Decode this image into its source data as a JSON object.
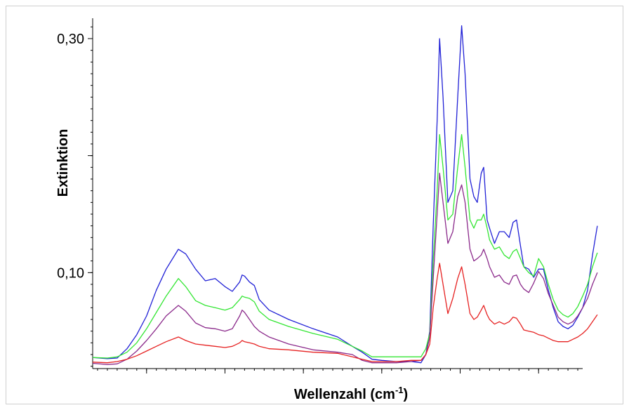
{
  "chart_data": {
    "type": "line",
    "title": "",
    "xlabel": "Wellenzahl (cm",
    "xlabel_sup": "-1",
    "xlabel_suffix": ")",
    "ylabel": "Extinktion",
    "ylim": [
      0.018,
      0.315
    ],
    "xlim": [
      0,
      100
    ],
    "y_tick_labels": [
      {
        "value": 0.3,
        "label": "0,30"
      },
      {
        "value": 0.1,
        "label": "0,10"
      }
    ],
    "y_major_ticks": [
      0.3,
      0.2,
      0.1
    ],
    "x_major_ticks": [
      11,
      27,
      43,
      59,
      75,
      91
    ],
    "grid": false,
    "legend": "none",
    "series": [
      {
        "color": "#2121d6",
        "points": [
          [
            0,
            0.0275
          ],
          [
            3,
            0.0265
          ],
          [
            5,
            0.027
          ],
          [
            7,
            0.035
          ],
          [
            9,
            0.047
          ],
          [
            11,
            0.063
          ],
          [
            13,
            0.085
          ],
          [
            15,
            0.103
          ],
          [
            17.5,
            0.12
          ],
          [
            19,
            0.116
          ],
          [
            21,
            0.103
          ],
          [
            23,
            0.093
          ],
          [
            25,
            0.095
          ],
          [
            27,
            0.088
          ],
          [
            28.5,
            0.084
          ],
          [
            30,
            0.092
          ],
          [
            30.5,
            0.098
          ],
          [
            31,
            0.097
          ],
          [
            32,
            0.092
          ],
          [
            33,
            0.089
          ],
          [
            34,
            0.077
          ],
          [
            36,
            0.068
          ],
          [
            40,
            0.06
          ],
          [
            45,
            0.052
          ],
          [
            50,
            0.045
          ],
          [
            53,
            0.037
          ],
          [
            55,
            0.032
          ],
          [
            57,
            0.026
          ],
          [
            59,
            0.025
          ],
          [
            62,
            0.024
          ],
          [
            65,
            0.024
          ],
          [
            67,
            0.023
          ],
          [
            68,
            0.03
          ],
          [
            68.8,
            0.05
          ],
          [
            69.5,
            0.14
          ],
          [
            70.3,
            0.23
          ],
          [
            70.8,
            0.3
          ],
          [
            71.5,
            0.25
          ],
          [
            72.5,
            0.16
          ],
          [
            73.5,
            0.17
          ],
          [
            74.5,
            0.25
          ],
          [
            75.3,
            0.311
          ],
          [
            76,
            0.27
          ],
          [
            77,
            0.18
          ],
          [
            77.8,
            0.165
          ],
          [
            78.5,
            0.16
          ],
          [
            79.3,
            0.185
          ],
          [
            79.8,
            0.19
          ],
          [
            80.5,
            0.145
          ],
          [
            81,
            0.138
          ],
          [
            82,
            0.125
          ],
          [
            83,
            0.135
          ],
          [
            84,
            0.135
          ],
          [
            85,
            0.13
          ],
          [
            85.8,
            0.143
          ],
          [
            86.5,
            0.145
          ],
          [
            87.3,
            0.123
          ],
          [
            88,
            0.105
          ],
          [
            89,
            0.103
          ],
          [
            90,
            0.096
          ],
          [
            91,
            0.103
          ],
          [
            92,
            0.103
          ],
          [
            93,
            0.085
          ],
          [
            94,
            0.07
          ],
          [
            95,
            0.058
          ],
          [
            96,
            0.054
          ],
          [
            97,
            0.052
          ],
          [
            98,
            0.055
          ],
          [
            99,
            0.062
          ],
          [
            100,
            0.07
          ],
          [
            101,
            0.085
          ],
          [
            102,
            0.115
          ],
          [
            103,
            0.14
          ]
        ]
      },
      {
        "color": "#33e633",
        "points": [
          [
            0,
            0.0275
          ],
          [
            3,
            0.027
          ],
          [
            5,
            0.028
          ],
          [
            7,
            0.032
          ],
          [
            9,
            0.04
          ],
          [
            11,
            0.052
          ],
          [
            13,
            0.066
          ],
          [
            15,
            0.08
          ],
          [
            17.5,
            0.095
          ],
          [
            19,
            0.088
          ],
          [
            21,
            0.076
          ],
          [
            23,
            0.072
          ],
          [
            25,
            0.07
          ],
          [
            27,
            0.068
          ],
          [
            28.5,
            0.07
          ],
          [
            30,
            0.077
          ],
          [
            30.5,
            0.08
          ],
          [
            31,
            0.079
          ],
          [
            32,
            0.078
          ],
          [
            33,
            0.075
          ],
          [
            34,
            0.067
          ],
          [
            36,
            0.06
          ],
          [
            40,
            0.054
          ],
          [
            45,
            0.048
          ],
          [
            50,
            0.043
          ],
          [
            53,
            0.037
          ],
          [
            55,
            0.033
          ],
          [
            57,
            0.028
          ],
          [
            59,
            0.028
          ],
          [
            62,
            0.028
          ],
          [
            65,
            0.028
          ],
          [
            67,
            0.028
          ],
          [
            68,
            0.035
          ],
          [
            68.8,
            0.048
          ],
          [
            69.5,
            0.11
          ],
          [
            70.3,
            0.17
          ],
          [
            70.8,
            0.218
          ],
          [
            71.5,
            0.19
          ],
          [
            72.5,
            0.145
          ],
          [
            73.5,
            0.15
          ],
          [
            74.5,
            0.19
          ],
          [
            75.3,
            0.218
          ],
          [
            76,
            0.19
          ],
          [
            77,
            0.145
          ],
          [
            77.8,
            0.138
          ],
          [
            78.5,
            0.145
          ],
          [
            79.3,
            0.145
          ],
          [
            79.8,
            0.15
          ],
          [
            80.5,
            0.138
          ],
          [
            81,
            0.128
          ],
          [
            82,
            0.12
          ],
          [
            83,
            0.122
          ],
          [
            84,
            0.115
          ],
          [
            85,
            0.112
          ],
          [
            85.8,
            0.118
          ],
          [
            86.5,
            0.12
          ],
          [
            87.3,
            0.112
          ],
          [
            88,
            0.105
          ],
          [
            89,
            0.1
          ],
          [
            90,
            0.097
          ],
          [
            91,
            0.112
          ],
          [
            92,
            0.105
          ],
          [
            93,
            0.09
          ],
          [
            94,
            0.077
          ],
          [
            95,
            0.068
          ],
          [
            96,
            0.064
          ],
          [
            97,
            0.062
          ],
          [
            98,
            0.065
          ],
          [
            99,
            0.071
          ],
          [
            100,
            0.08
          ],
          [
            101,
            0.09
          ],
          [
            102,
            0.105
          ],
          [
            103,
            0.117
          ]
        ]
      },
      {
        "color": "#8b2a8b",
        "points": [
          [
            0,
            0.0225
          ],
          [
            3,
            0.0215
          ],
          [
            5,
            0.022
          ],
          [
            7,
            0.026
          ],
          [
            9,
            0.033
          ],
          [
            11,
            0.042
          ],
          [
            13,
            0.052
          ],
          [
            15,
            0.063
          ],
          [
            17.5,
            0.072
          ],
          [
            19,
            0.067
          ],
          [
            21,
            0.057
          ],
          [
            23,
            0.053
          ],
          [
            25,
            0.052
          ],
          [
            27,
            0.05
          ],
          [
            28.5,
            0.052
          ],
          [
            30,
            0.063
          ],
          [
            30.5,
            0.068
          ],
          [
            31,
            0.066
          ],
          [
            32,
            0.06
          ],
          [
            33,
            0.054
          ],
          [
            34,
            0.05
          ],
          [
            36,
            0.045
          ],
          [
            40,
            0.039
          ],
          [
            45,
            0.034
          ],
          [
            50,
            0.032
          ],
          [
            53,
            0.03
          ],
          [
            55,
            0.025
          ],
          [
            57,
            0.023
          ],
          [
            59,
            0.023
          ],
          [
            62,
            0.023
          ],
          [
            65,
            0.024
          ],
          [
            67,
            0.025
          ],
          [
            68,
            0.03
          ],
          [
            68.8,
            0.045
          ],
          [
            69.5,
            0.095
          ],
          [
            70.3,
            0.15
          ],
          [
            70.8,
            0.185
          ],
          [
            71.5,
            0.16
          ],
          [
            72.5,
            0.125
          ],
          [
            73.5,
            0.135
          ],
          [
            74.5,
            0.165
          ],
          [
            75.3,
            0.175
          ],
          [
            76,
            0.16
          ],
          [
            77,
            0.12
          ],
          [
            77.8,
            0.11
          ],
          [
            78.5,
            0.112
          ],
          [
            79.3,
            0.115
          ],
          [
            79.8,
            0.12
          ],
          [
            80.5,
            0.112
          ],
          [
            81,
            0.105
          ],
          [
            82,
            0.096
          ],
          [
            83,
            0.098
          ],
          [
            84,
            0.092
          ],
          [
            85,
            0.09
          ],
          [
            85.8,
            0.097
          ],
          [
            86.5,
            0.098
          ],
          [
            87.3,
            0.09
          ],
          [
            88,
            0.086
          ],
          [
            89,
            0.083
          ],
          [
            90,
            0.091
          ],
          [
            91,
            0.101
          ],
          [
            92,
            0.095
          ],
          [
            93,
            0.082
          ],
          [
            94,
            0.072
          ],
          [
            95,
            0.062
          ],
          [
            96,
            0.058
          ],
          [
            97,
            0.056
          ],
          [
            98,
            0.058
          ],
          [
            99,
            0.063
          ],
          [
            100,
            0.07
          ],
          [
            101,
            0.078
          ],
          [
            102,
            0.09
          ],
          [
            103,
            0.1
          ]
        ]
      },
      {
        "color": "#e62121",
        "points": [
          [
            0,
            0.0235
          ],
          [
            3,
            0.023
          ],
          [
            5,
            0.024
          ],
          [
            7,
            0.026
          ],
          [
            9,
            0.029
          ],
          [
            11,
            0.033
          ],
          [
            13,
            0.037
          ],
          [
            15,
            0.041
          ],
          [
            17.5,
            0.045
          ],
          [
            19,
            0.042
          ],
          [
            21,
            0.039
          ],
          [
            23,
            0.038
          ],
          [
            25,
            0.037
          ],
          [
            27,
            0.036
          ],
          [
            28.5,
            0.037
          ],
          [
            30,
            0.04
          ],
          [
            30.5,
            0.042
          ],
          [
            31,
            0.041
          ],
          [
            32,
            0.04
          ],
          [
            33,
            0.039
          ],
          [
            34,
            0.037
          ],
          [
            36,
            0.035
          ],
          [
            40,
            0.034
          ],
          [
            45,
            0.032
          ],
          [
            50,
            0.031
          ],
          [
            53,
            0.028
          ],
          [
            55,
            0.026
          ],
          [
            57,
            0.024
          ],
          [
            59,
            0.024
          ],
          [
            62,
            0.024
          ],
          [
            65,
            0.025
          ],
          [
            67,
            0.025
          ],
          [
            68,
            0.03
          ],
          [
            68.8,
            0.039
          ],
          [
            69.5,
            0.07
          ],
          [
            70.3,
            0.095
          ],
          [
            70.8,
            0.108
          ],
          [
            71.5,
            0.09
          ],
          [
            72.5,
            0.065
          ],
          [
            73.5,
            0.078
          ],
          [
            74.5,
            0.095
          ],
          [
            75.3,
            0.105
          ],
          [
            76,
            0.09
          ],
          [
            77,
            0.065
          ],
          [
            77.8,
            0.06
          ],
          [
            78.5,
            0.062
          ],
          [
            79.3,
            0.068
          ],
          [
            79.8,
            0.072
          ],
          [
            80.5,
            0.064
          ],
          [
            81,
            0.06
          ],
          [
            82,
            0.056
          ],
          [
            83,
            0.058
          ],
          [
            84,
            0.056
          ],
          [
            85,
            0.058
          ],
          [
            85.8,
            0.062
          ],
          [
            86.5,
            0.061
          ],
          [
            87.3,
            0.056
          ],
          [
            88,
            0.051
          ],
          [
            89,
            0.05
          ],
          [
            90,
            0.049
          ],
          [
            91,
            0.047
          ],
          [
            92,
            0.046
          ],
          [
            93,
            0.044
          ],
          [
            94,
            0.042
          ],
          [
            95,
            0.041
          ],
          [
            96,
            0.041
          ],
          [
            97,
            0.041
          ],
          [
            98,
            0.043
          ],
          [
            99,
            0.045
          ],
          [
            100,
            0.048
          ],
          [
            101,
            0.052
          ],
          [
            102,
            0.058
          ],
          [
            103,
            0.064
          ]
        ]
      }
    ]
  }
}
